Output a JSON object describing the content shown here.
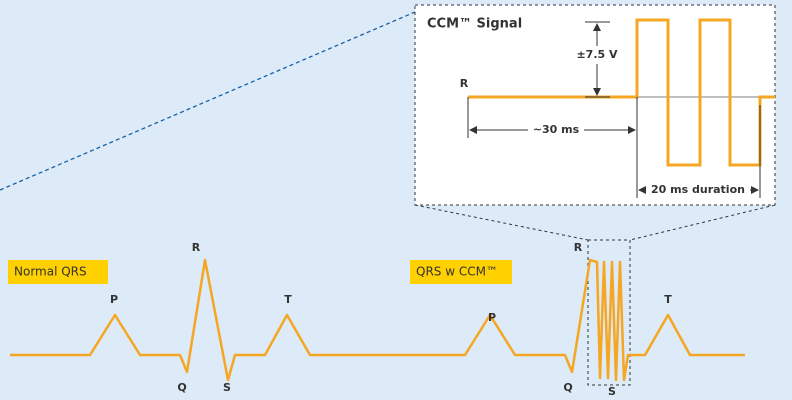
{
  "inset": {
    "title": "CCM™ Signal",
    "amplitude": "±7.5 V",
    "r_label": "R",
    "delay": "~30 ms",
    "duration": "20 ms duration"
  },
  "badges": {
    "normal": "Normal QRS",
    "ccm": "QRS w CCM™"
  },
  "normal_waves": {
    "p": "P",
    "q": "Q",
    "r": "R",
    "s": "S",
    "t": "T"
  },
  "ccm_waves": {
    "p": "P",
    "q": "Q",
    "r": "R",
    "s": "S",
    "t": "T"
  }
}
